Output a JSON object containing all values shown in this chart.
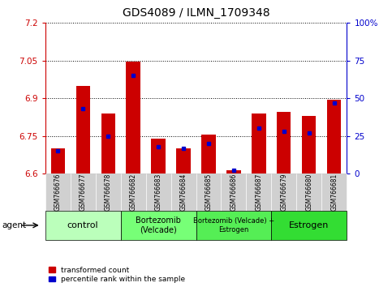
{
  "title": "GDS4089 / ILMN_1709348",
  "samples": [
    "GSM766676",
    "GSM766677",
    "GSM766678",
    "GSM766682",
    "GSM766683",
    "GSM766684",
    "GSM766685",
    "GSM766686",
    "GSM766687",
    "GSM766679",
    "GSM766680",
    "GSM766681"
  ],
  "red_values": [
    6.7,
    6.95,
    6.84,
    7.047,
    6.74,
    6.7,
    6.755,
    6.615,
    6.84,
    6.845,
    6.83,
    6.895
  ],
  "blue_values": [
    15,
    43,
    25,
    65,
    18,
    17,
    20,
    2,
    30,
    28,
    27,
    47
  ],
  "ymin": 6.6,
  "ymax": 7.2,
  "yticks": [
    6.6,
    6.75,
    6.9,
    7.05,
    7.2
  ],
  "ytick_labels": [
    "6.6",
    "6.75",
    "6.9",
    "7.05",
    "7.2"
  ],
  "y2min": 0,
  "y2max": 100,
  "y2ticks": [
    0,
    25,
    50,
    75,
    100
  ],
  "y2tick_labels": [
    "0",
    "25",
    "50",
    "75",
    "100%"
  ],
  "groups": [
    {
      "label": "control",
      "start": 0,
      "end": 3,
      "color": "#bbffbb",
      "fontsize": 8
    },
    {
      "label": "Bortezomib\n(Velcade)",
      "start": 3,
      "end": 6,
      "color": "#77ff77",
      "fontsize": 7
    },
    {
      "label": "Bortezomib (Velcade) +\nEstrogen",
      "start": 6,
      "end": 9,
      "color": "#55ee55",
      "fontsize": 6
    },
    {
      "label": "Estrogen",
      "start": 9,
      "end": 12,
      "color": "#33dd33",
      "fontsize": 8
    }
  ],
  "bar_color": "#cc0000",
  "dot_color": "#0000cc",
  "bar_width": 0.55,
  "legend_red": "transformed count",
  "legend_blue": "percentile rank within the sample",
  "agent_label": "agent",
  "left_color": "#cc0000",
  "right_color": "#0000cc",
  "title_fontsize": 10
}
